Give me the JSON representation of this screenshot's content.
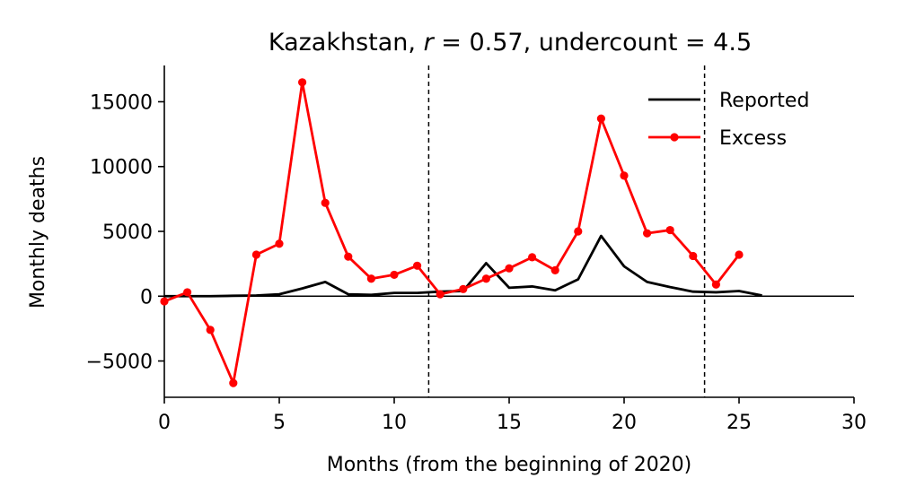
{
  "chart_data": {
    "type": "line",
    "title": {
      "prefix": "Kazakhstan, ",
      "r_symbol": "r",
      "r_part": " = 0.57, undercount = 4.5"
    },
    "xlabel": "Months (from the beginning of 2020)",
    "ylabel": "Monthly deaths",
    "xlim": [
      0,
      30
    ],
    "ylim": [
      -7800,
      17800
    ],
    "xticks": [
      0,
      5,
      10,
      15,
      20,
      25,
      30
    ],
    "xtick_labels": [
      "0",
      "5",
      "10",
      "15",
      "20",
      "25",
      "30"
    ],
    "yticks": [
      -5000,
      0,
      5000,
      10000,
      15000
    ],
    "ytick_labels": [
      "−5000",
      "0",
      "5000",
      "10000",
      "15000"
    ],
    "vlines": [
      11.5,
      23.5
    ],
    "hline": 0,
    "legend_position": "top-right",
    "series": [
      {
        "name": "Reported",
        "color": "#000000",
        "marker": false,
        "x": [
          0,
          1,
          2,
          3,
          4,
          5,
          6,
          7,
          8,
          9,
          10,
          11,
          12,
          13,
          14,
          15,
          16,
          17,
          18,
          19,
          20,
          21,
          22,
          23,
          24,
          25,
          26
        ],
        "y": [
          0,
          0,
          0,
          30,
          50,
          150,
          600,
          1100,
          150,
          100,
          250,
          250,
          350,
          400,
          2550,
          650,
          750,
          450,
          1300,
          4650,
          2300,
          1100,
          700,
          350,
          300,
          400,
          50
        ]
      },
      {
        "name": "Excess",
        "color": "#ff0000",
        "marker": true,
        "x": [
          0,
          1,
          2,
          3,
          4,
          5,
          6,
          7,
          8,
          9,
          10,
          11,
          12,
          13,
          14,
          15,
          16,
          17,
          18,
          19,
          20,
          21,
          22,
          23,
          24,
          25
        ],
        "y": [
          -400,
          300,
          -2600,
          -6700,
          3200,
          4050,
          16500,
          7200,
          3050,
          1350,
          1650,
          2350,
          150,
          550,
          1350,
          2150,
          3000,
          2000,
          5000,
          13700,
          9300,
          4850,
          5100,
          3100,
          900,
          3200
        ]
      }
    ]
  }
}
